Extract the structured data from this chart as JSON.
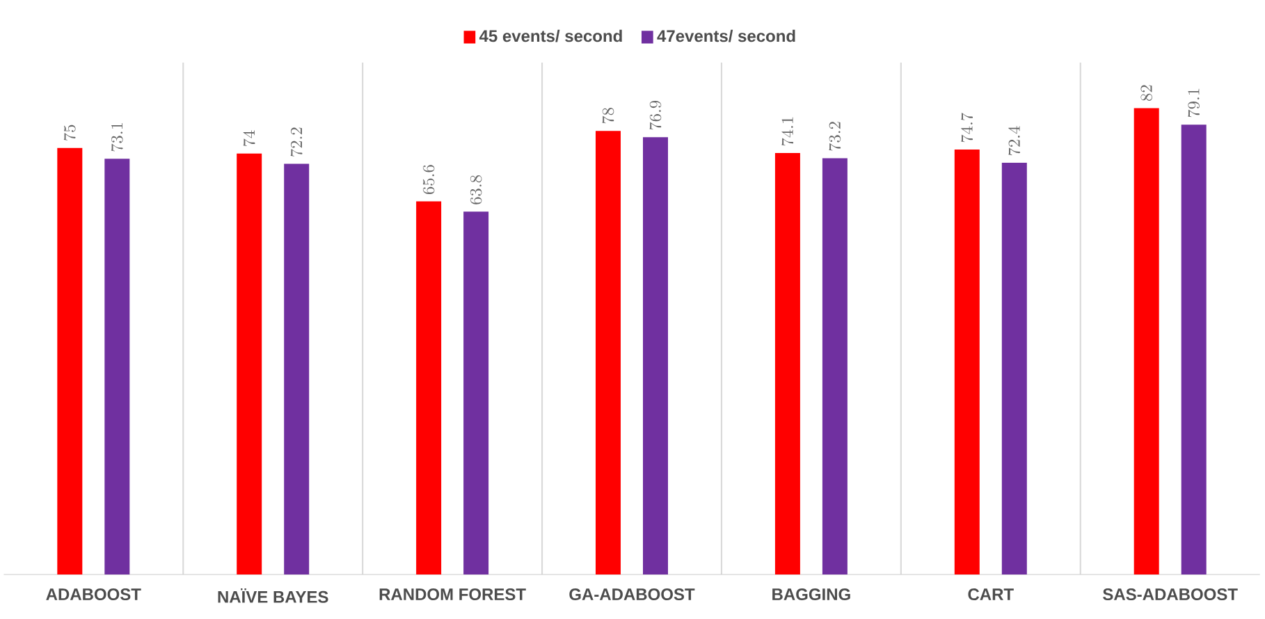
{
  "chart_data": {
    "type": "bar",
    "categories": [
      "ADABOOST",
      "NAÏVE BAYES",
      "RANDOM FOREST",
      "GA-ADABOOST",
      "BAGGING",
      "CART",
      "SAS-ADABOOST"
    ],
    "series": [
      {
        "name": "45  events/ second",
        "color": "#ff0000",
        "values": [
          75,
          74,
          65.6,
          78,
          74.1,
          74.7,
          82
        ]
      },
      {
        "name": "47events/ second",
        "color": "#7030a0",
        "values": [
          73.1,
          72.2,
          63.8,
          76.9,
          73.2,
          72.4,
          79.1
        ]
      }
    ],
    "ylim": [
      0,
      90
    ],
    "data_labels": true,
    "grid": "x",
    "legend": "top",
    "tick_labels": "x"
  }
}
